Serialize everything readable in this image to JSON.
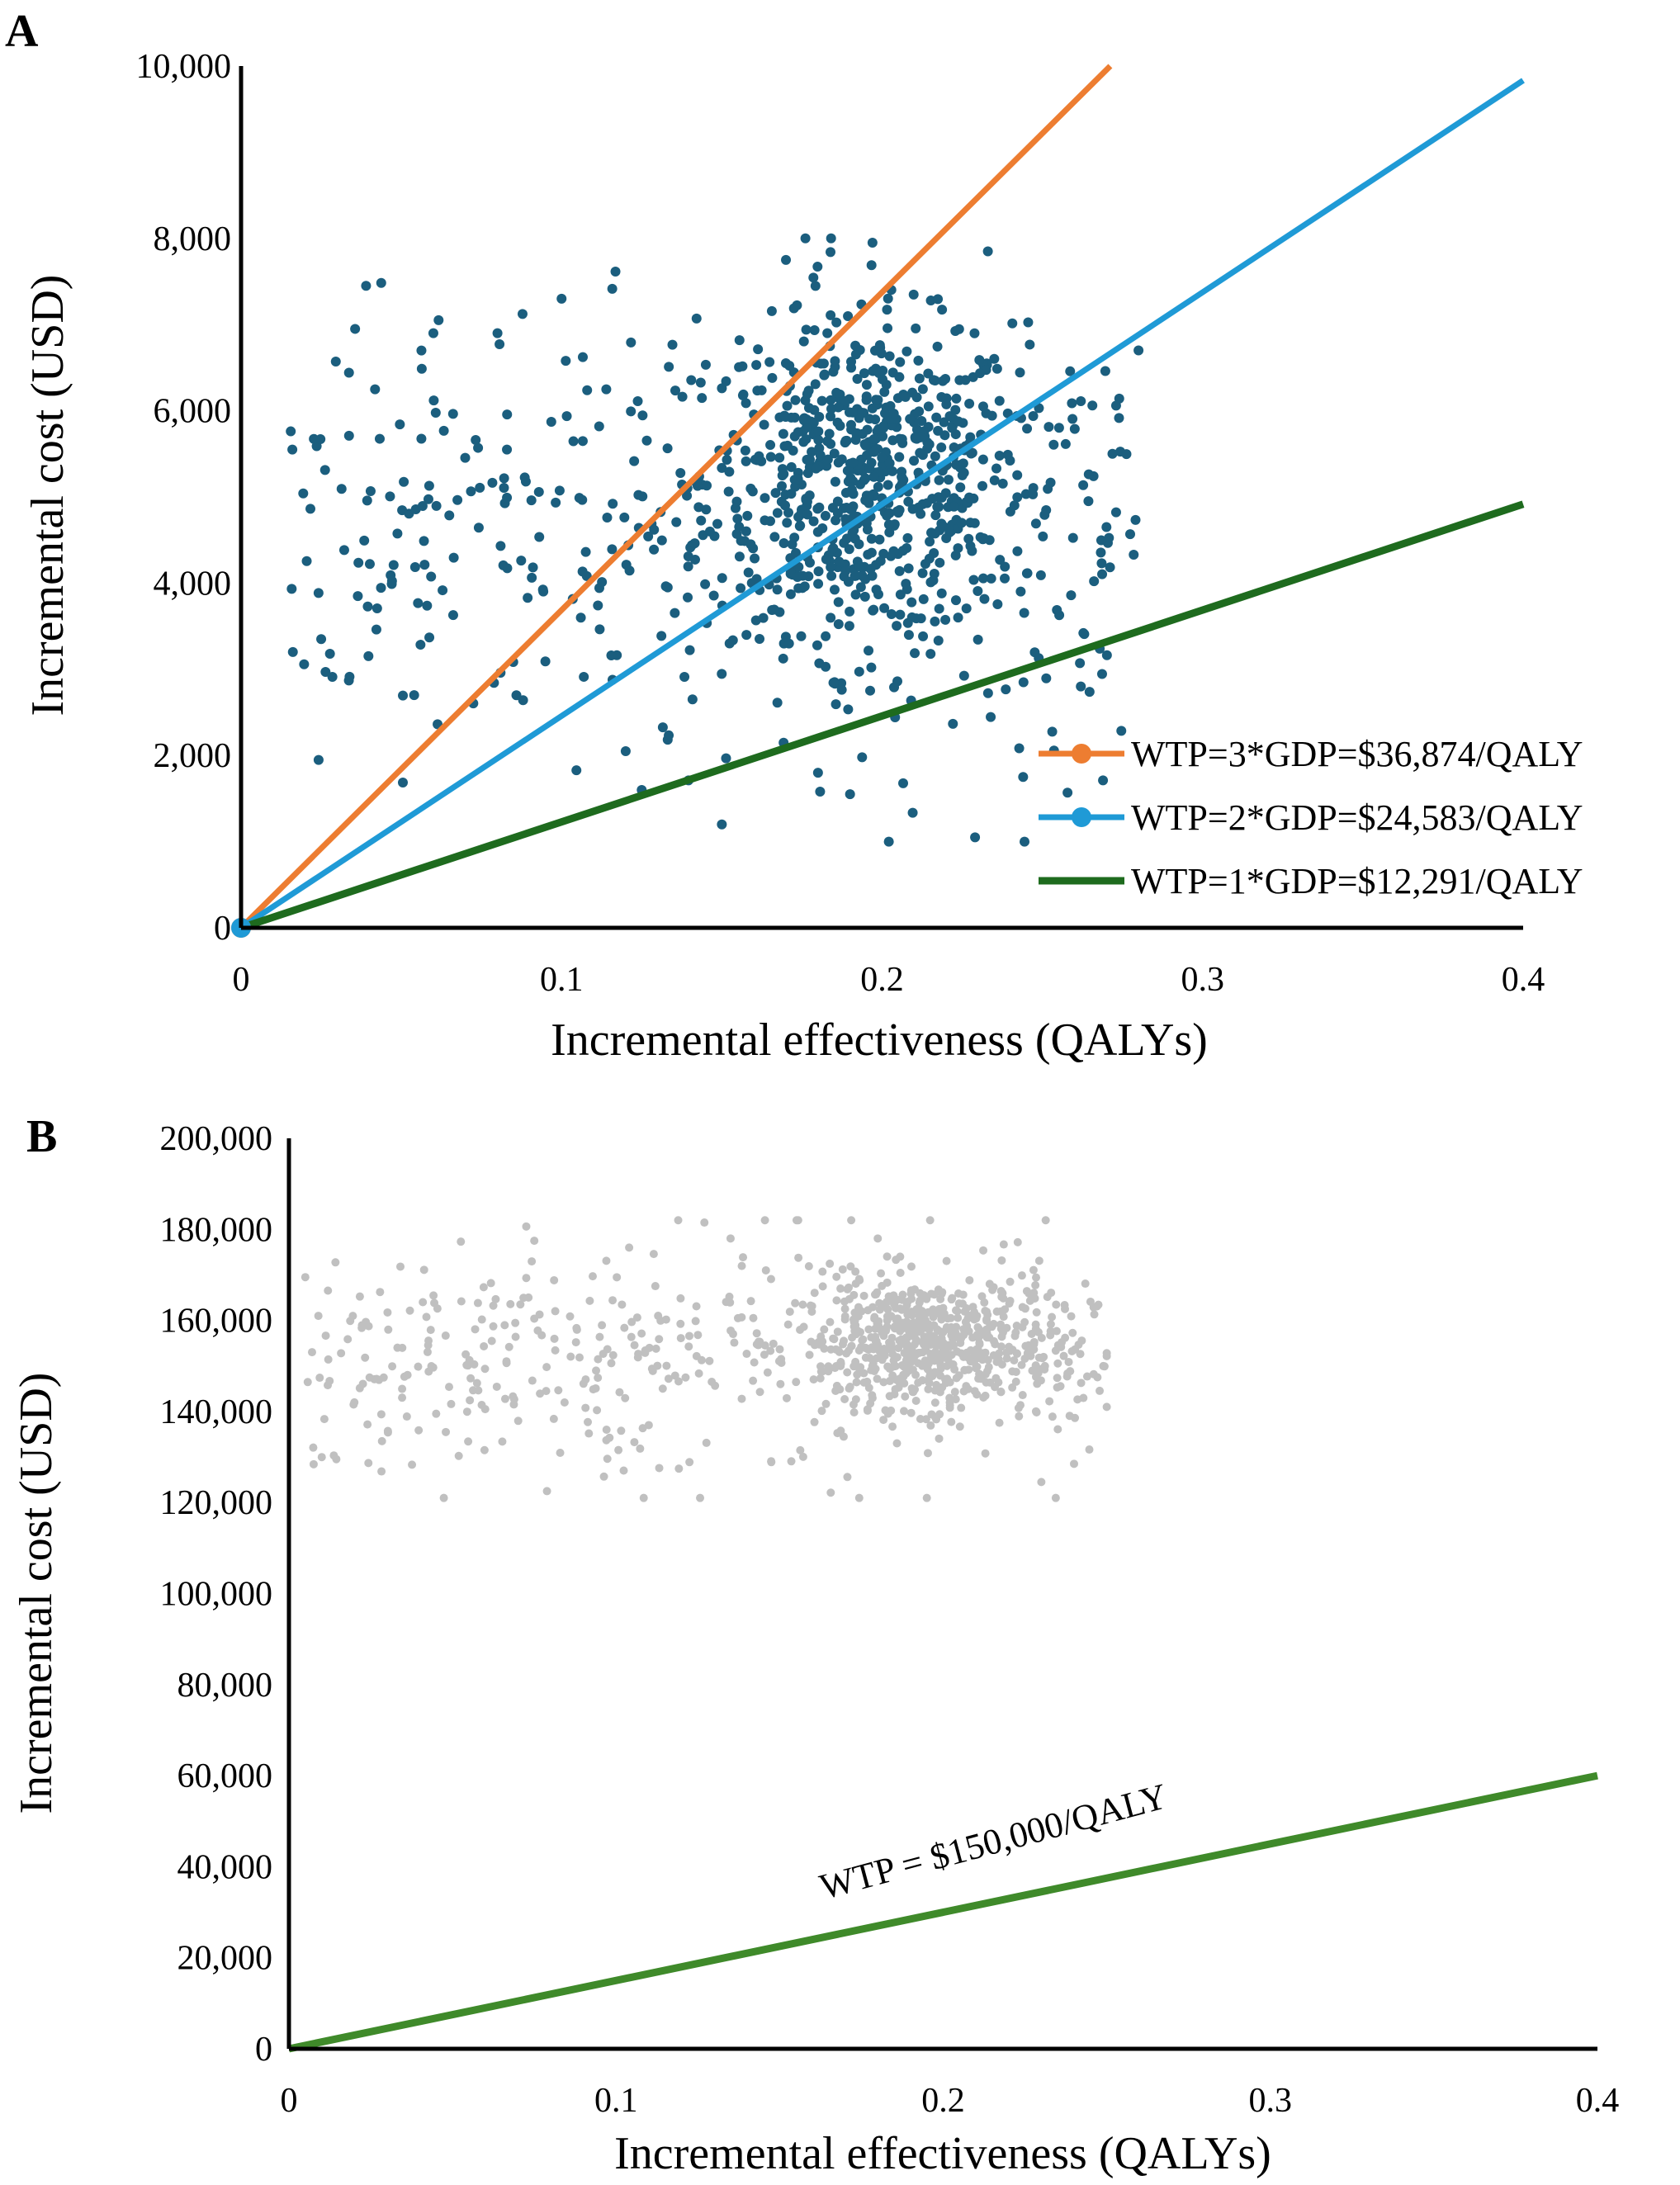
{
  "colors": {
    "wtp3": "#ED7D31",
    "wtp2": "#1F9AD6",
    "wtp1": "#1E6B1E",
    "wtp150k": "#3F8A2A",
    "points_a": "#1B5E7E",
    "points_b": "#C0C0C0"
  },
  "chart_data": [
    {
      "type": "scatter",
      "panel_label": "A",
      "xlabel": "Incremental effectiveness (QALYs)",
      "ylabel": "Incremental cost (USD)",
      "xlim": [
        0,
        0.4
      ],
      "ylim": [
        0,
        10000
      ],
      "x_ticks": [
        0,
        0.1,
        0.2,
        0.3,
        0.4
      ],
      "x_tick_labels": [
        "0",
        "0.1",
        "0.2",
        "0.3",
        "0.4"
      ],
      "y_ticks": [
        0,
        2000,
        4000,
        6000,
        8000,
        10000
      ],
      "y_tick_labels": [
        "0",
        "2,000",
        "4,000",
        "6,000",
        "8,000",
        "10,000"
      ],
      "legend_position": "bottom-right",
      "lines": [
        {
          "name": "WTP=3*GDP=$36,874/QALY",
          "slope": 36874,
          "color_key": "wtp3",
          "marker": "circle"
        },
        {
          "name": "WTP=2*GDP=$24,583/QALY",
          "slope": 24583,
          "color_key": "wtp2",
          "marker": "circle"
        },
        {
          "name": "WTP=1*GDP=$12,291/QALY",
          "slope": 12291,
          "color_key": "wtp1",
          "marker": "none"
        }
      ],
      "scatter": {
        "color_key": "points_a",
        "n_points": 1000,
        "cluster": {
          "x_mean": 0.195,
          "x_sd": 0.025,
          "y_mean": 5200,
          "y_sd": 900,
          "n": 600
        },
        "spread": {
          "x_min": 0.015,
          "x_max": 0.28,
          "y_min": 1000,
          "y_max": 8000,
          "n": 400
        },
        "sample_points": [
          [
            0.016,
            5550
          ],
          [
            0.025,
            3350
          ],
          [
            0.039,
            7450
          ],
          [
            0.054,
            2700
          ],
          [
            0.12,
            2050
          ],
          [
            0.125,
            1600
          ],
          [
            0.15,
            1200
          ],
          [
            0.18,
            1800
          ],
          [
            0.19,
            1550
          ],
          [
            0.229,
            1050
          ],
          [
            0.28,
            6700
          ],
          [
            0.197,
            7950
          ],
          [
            0.17,
            7750
          ],
          [
            0.233,
            7850
          ],
          [
            0.27,
            4650
          ],
          [
            0.262,
            2800
          ],
          [
            0.244,
            1750
          ],
          [
            0.1,
            7300
          ],
          [
            0.08,
            6900
          ],
          [
            0.06,
            6900
          ]
        ]
      }
    },
    {
      "type": "scatter",
      "panel_label": "B",
      "xlabel": "Incremental effectiveness (QALYs)",
      "ylabel": "Incremental cost (USD)",
      "xlim": [
        0,
        0.4
      ],
      "ylim": [
        0,
        200000
      ],
      "x_ticks": [
        0,
        0.1,
        0.2,
        0.3,
        0.4
      ],
      "x_tick_labels": [
        "0",
        "0.1",
        "0.2",
        "0.3",
        "0.4"
      ],
      "y_ticks": [
        0,
        20000,
        40000,
        60000,
        80000,
        100000,
        120000,
        140000,
        160000,
        180000,
        200000
      ],
      "y_tick_labels": [
        "0",
        "20,000",
        "40,000",
        "60,000",
        "80,000",
        "100,000",
        "120,000",
        "140,000",
        "160,000",
        "180,000",
        "200,000"
      ],
      "lines": [
        {
          "name": "WTP = $150,000/QALY",
          "slope": 150000,
          "color_key": "wtp150k",
          "marker": "none",
          "annotation": "WTP = $150,000/QALY"
        }
      ],
      "scatter": {
        "color_key": "points_b",
        "n_points": 1000,
        "cluster": {
          "x_mean": 0.195,
          "x_sd": 0.02,
          "y_mean": 155000,
          "y_sd": 7000,
          "n": 600
        },
        "spread": {
          "x_min": 0.005,
          "x_max": 0.25,
          "y_min": 121000,
          "y_max": 182000,
          "n": 400
        },
        "sample_points": [
          [
            0.005,
            169500
          ],
          [
            0.02,
            142000
          ],
          [
            0.11,
            137000
          ],
          [
            0.195,
            121000
          ],
          [
            0.196,
            182000
          ],
          [
            0.127,
            181500
          ],
          [
            0.23,
            124500
          ],
          [
            0.24,
            128500
          ],
          [
            0.25,
            141000
          ],
          [
            0.18,
            178000
          ],
          [
            0.075,
            177500
          ],
          [
            0.104,
            176000
          ],
          [
            0.135,
            178000
          ],
          [
            0.045,
            139500
          ],
          [
            0.06,
            140500
          ]
        ]
      }
    }
  ]
}
